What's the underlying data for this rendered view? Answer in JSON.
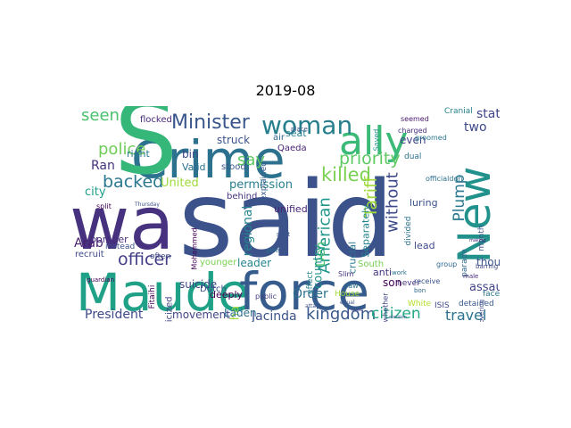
{
  "title": "2019-08",
  "words": [
    {
      "text": "said",
      "color": "#3b528b"
    },
    {
      "text": "wa",
      "color": "#46327e"
    },
    {
      "text": "Maude",
      "color": "#1fa187"
    },
    {
      "text": "force",
      "color": "#365c8d"
    },
    {
      "text": "Crime",
      "color": "#2c728e"
    },
    {
      "text": "New",
      "color": "#21918c"
    },
    {
      "text": "S",
      "color": "#35b779"
    },
    {
      "text": "ally",
      "color": "#3aba76"
    },
    {
      "text": "woman",
      "color": "#277f8e"
    },
    {
      "text": "Minister",
      "color": "#39568c"
    },
    {
      "text": "police",
      "color": "#6ece58"
    },
    {
      "text": "seen",
      "color": "#4ac16d"
    },
    {
      "text": "Ran",
      "color": "#46337e"
    },
    {
      "text": "backed",
      "color": "#2a788e"
    },
    {
      "text": "say",
      "color": "#5ec962"
    },
    {
      "text": "killed",
      "color": "#7ad151"
    },
    {
      "text": "priority",
      "color": "#5ec962"
    },
    {
      "text": "Tariff",
      "color": "#9fda3a"
    },
    {
      "text": "American",
      "color": "#1f988b"
    },
    {
      "text": "without",
      "color": "#3e4a89"
    },
    {
      "text": "officer",
      "color": "#433e85"
    },
    {
      "text": "kingdom",
      "color": "#38598c"
    },
    {
      "text": "citizen",
      "color": "#22a884"
    },
    {
      "text": "travel",
      "color": "#2c728e"
    },
    {
      "text": "Den",
      "color": "#4ac16d"
    },
    {
      "text": "Plump",
      "color": "#2a788e"
    },
    {
      "text": "state",
      "color": "#404688"
    },
    {
      "text": "two",
      "color": "#3e4989"
    },
    {
      "text": "though",
      "color": "#3b528b"
    },
    {
      "text": "assault",
      "color": "#414487"
    },
    {
      "text": "President",
      "color": "#3e4989"
    },
    {
      "text": "Jacinda",
      "color": "#3b528b"
    },
    {
      "text": "Order",
      "color": "#2d708e"
    },
    {
      "text": "leader",
      "color": "#25858e"
    },
    {
      "text": "regional",
      "color": "#25858e"
    },
    {
      "text": "country",
      "color": "#20928c"
    },
    {
      "text": "United",
      "color": "#9fda3a"
    },
    {
      "text": "permission",
      "color": "#277f8e"
    },
    {
      "text": "city",
      "color": "#1f9e89"
    },
    {
      "text": "Arab",
      "color": "#481f70"
    },
    {
      "text": "struck",
      "color": "#3b528b"
    },
    {
      "text": "bin",
      "color": "#3e4989"
    },
    {
      "text": "Valid",
      "color": "#2d708e"
    },
    {
      "text": "right",
      "color": "#2a788e"
    },
    {
      "text": "suicide",
      "color": "#404688"
    },
    {
      "text": "lead",
      "color": "#3e4989"
    },
    {
      "text": "son",
      "color": "#440154"
    },
    {
      "text": "seat",
      "color": "#26828e"
    },
    {
      "text": "crucial",
      "color": "#2a788e"
    },
    {
      "text": "South",
      "color": "#75d054"
    },
    {
      "text": "even",
      "color": "#404688"
    },
    {
      "text": "ha",
      "color": "#9fda3a"
    },
    {
      "text": "unified",
      "color": "#482475"
    },
    {
      "text": "movement",
      "color": "#414487"
    },
    {
      "text": "Laden",
      "color": "#2d708e"
    },
    {
      "text": "luring",
      "color": "#3b528b"
    },
    {
      "text": "Separately",
      "color": "#25858e"
    },
    {
      "text": "anti",
      "color": "#46337e"
    },
    {
      "text": "bomber",
      "color": "#472d7b"
    },
    {
      "text": "instead",
      "color": "#3b528b"
    },
    {
      "text": "often",
      "color": "#3e4989"
    },
    {
      "text": "deeply",
      "color": "#440154"
    },
    {
      "text": "stood",
      "color": "#38598c"
    },
    {
      "text": "Dutch",
      "color": "#3b528b"
    },
    {
      "text": "younger",
      "color": "#7ad151"
    },
    {
      "text": "criticized",
      "color": "#404688"
    },
    {
      "text": "recruit",
      "color": "#3e4989"
    },
    {
      "text": "flocked",
      "color": "#482878"
    },
    {
      "text": "House",
      "color": "#9fda3a"
    },
    {
      "text": "air",
      "color": "#31688e"
    },
    {
      "text": "Qaeda",
      "color": "#482475"
    },
    {
      "text": "behind",
      "color": "#46337e"
    },
    {
      "text": "explained",
      "color": "#365c8d"
    },
    {
      "text": "effect",
      "color": "#26828e"
    },
    {
      "text": "Saved",
      "color": "#20928c"
    },
    {
      "text": "dual",
      "color": "#2d708e"
    },
    {
      "text": "charged",
      "color": "#472c7a"
    },
    {
      "text": "groomed",
      "color": "#2a788e"
    },
    {
      "text": "Cranial",
      "color": "#277f8e"
    },
    {
      "text": "seemed",
      "color": "#481a6c"
    },
    {
      "text": "divided",
      "color": "#2c728e"
    },
    {
      "text": "parade",
      "color": "#31688e"
    },
    {
      "text": "month",
      "color": "#3b528b"
    },
    {
      "text": "detained",
      "color": "#38598c"
    },
    {
      "text": "ISIS",
      "color": "#404688"
    },
    {
      "text": "White",
      "color": "#b5de2b"
    },
    {
      "text": "never",
      "color": "#46337e"
    },
    {
      "text": "face",
      "color": "#2a788e"
    },
    {
      "text": "group",
      "color": "#31688e"
    },
    {
      "text": "whether",
      "color": "#404688"
    },
    {
      "text": "receive",
      "color": "#3b528b"
    },
    {
      "text": "Slim",
      "color": "#46337e"
    },
    {
      "text": "Fitaihi",
      "color": "#440154"
    },
    {
      "text": "Mohammed",
      "color": "#440154"
    },
    {
      "text": "officialdon",
      "color": "#2d708e"
    },
    {
      "text": "male",
      "color": "#472c7a"
    },
    {
      "text": "barring",
      "color": "#3e4a89"
    },
    {
      "text": "covering",
      "color": "#3e4a89"
    },
    {
      "text": "public",
      "color": "#433e85"
    },
    {
      "text": "place",
      "color": "#3b528b"
    },
    {
      "text": "Thursday",
      "color": "#3b528b"
    },
    {
      "text": "split",
      "color": "#440154"
    },
    {
      "text": "guardian",
      "color": "#440154"
    },
    {
      "text": "work",
      "color": "#2c728e"
    },
    {
      "text": "bon",
      "color": "#31688e"
    },
    {
      "text": "able",
      "color": "#2d708e"
    },
    {
      "text": "sent",
      "color": "#3b528b"
    },
    {
      "text": "law",
      "color": "#2d708e"
    },
    {
      "text": "attack",
      "color": "#3b528b"
    },
    {
      "text": "equal",
      "color": "#3b528b"
    },
    {
      "text": "allow",
      "color": "#414487"
    },
    {
      "text": "election",
      "color": "#3b528b"
    },
    {
      "text": "making",
      "color": "#482878"
    }
  ]
}
